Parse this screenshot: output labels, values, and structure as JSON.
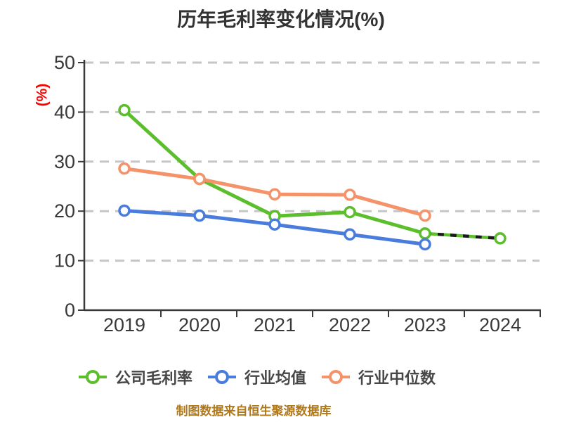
{
  "title": "历年毛利率变化情况(%)",
  "footer": {
    "text": "制图数据来自恒生聚源数据库"
  },
  "colors": {
    "company": "#5cbe2d",
    "industry_avg": "#4a7cdd",
    "industry_median": "#f4926a",
    "axis": "#3a3a3a",
    "tick_label": "#383838",
    "grid": "#c6c6c6",
    "y_unit_label": "#fe0000",
    "title_text": "#333333",
    "legend_text": "#474747",
    "footer_text": "#b07818",
    "marker_fill": "#ffffff",
    "forecast_dash_dark": "#1a1a1a"
  },
  "chart_data": {
    "type": "line",
    "title": "历年毛利率变化情况(%)",
    "xlabel": "",
    "ylabel": "(%)",
    "categories": [
      "2019",
      "2020",
      "2021",
      "2022",
      "2023",
      "2024"
    ],
    "ylim": [
      0,
      50
    ],
    "yticks": [
      0,
      10,
      20,
      30,
      40,
      50
    ],
    "grid": "horizontal-dashed",
    "legend_position": "bottom",
    "marker_style": "white-filled circle with colored ring",
    "series": [
      {
        "key": "company-gross-margin",
        "name": "公司毛利率",
        "color": "#5cbe2d",
        "values": [
          40.4,
          26.5,
          19.0,
          19.8,
          15.5,
          14.5
        ],
        "dashed_from_index": 4,
        "dashed_note": "2023→2024 segment drawn as alternating green/black dashes (estimate)"
      },
      {
        "key": "industry-average",
        "name": "行业均值",
        "color": "#4a7cdd",
        "values": [
          20.1,
          19.1,
          17.3,
          15.3,
          13.3,
          null
        ],
        "dashed_from_index": null,
        "dashed_note": ""
      },
      {
        "key": "industry-median",
        "name": "行业中位数",
        "color": "#f4926a",
        "values": [
          28.6,
          26.5,
          23.4,
          23.3,
          19.1,
          null
        ],
        "dashed_from_index": null,
        "dashed_note": ""
      }
    ]
  }
}
